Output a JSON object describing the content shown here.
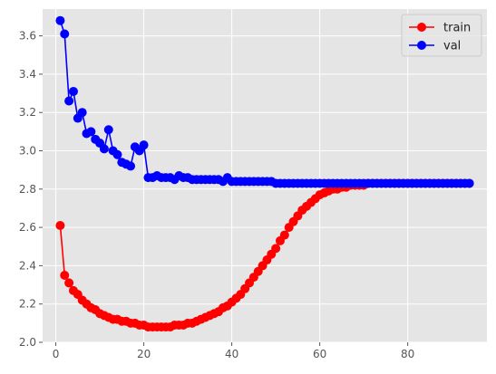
{
  "chart_data": {
    "type": "line",
    "x": [
      1,
      2,
      3,
      4,
      5,
      6,
      7,
      8,
      9,
      10,
      11,
      12,
      13,
      14,
      15,
      16,
      17,
      18,
      19,
      20,
      21,
      22,
      23,
      24,
      25,
      26,
      27,
      28,
      29,
      30,
      31,
      32,
      33,
      34,
      35,
      36,
      37,
      38,
      39,
      40,
      41,
      42,
      43,
      44,
      45,
      46,
      47,
      48,
      49,
      50,
      51,
      52,
      53,
      54,
      55,
      56,
      57,
      58,
      59,
      60,
      61,
      62,
      63,
      64,
      65,
      66,
      67,
      68,
      69,
      70,
      71,
      72,
      73,
      74,
      75,
      76,
      77,
      78,
      79,
      80,
      81,
      82,
      83,
      84,
      85,
      86,
      87,
      88,
      89,
      90,
      91,
      92,
      93,
      94
    ],
    "series": [
      {
        "name": "train",
        "color": "#ff0000",
        "values": [
          2.61,
          2.35,
          2.31,
          2.27,
          2.25,
          2.22,
          2.2,
          2.18,
          2.17,
          2.15,
          2.14,
          2.13,
          2.12,
          2.12,
          2.11,
          2.11,
          2.1,
          2.1,
          2.09,
          2.09,
          2.08,
          2.08,
          2.08,
          2.08,
          2.08,
          2.08,
          2.09,
          2.09,
          2.09,
          2.1,
          2.1,
          2.11,
          2.12,
          2.13,
          2.14,
          2.15,
          2.16,
          2.18,
          2.19,
          2.21,
          2.23,
          2.25,
          2.28,
          2.31,
          2.34,
          2.37,
          2.4,
          2.43,
          2.46,
          2.49,
          2.53,
          2.56,
          2.6,
          2.63,
          2.66,
          2.69,
          2.71,
          2.73,
          2.75,
          2.77,
          2.78,
          2.79,
          2.8,
          2.8,
          2.81,
          2.81,
          2.82,
          2.82,
          2.82,
          2.82,
          2.83,
          2.83,
          2.83,
          2.83,
          2.83,
          2.83,
          2.83,
          2.83,
          2.83,
          2.83,
          2.83,
          2.83,
          2.83,
          2.83,
          2.83,
          2.83,
          2.83,
          2.83,
          2.83,
          2.83,
          2.83,
          2.83,
          2.83,
          2.83
        ]
      },
      {
        "name": "val",
        "color": "#0000ff",
        "values": [
          3.68,
          3.61,
          3.26,
          3.31,
          3.17,
          3.2,
          3.09,
          3.1,
          3.06,
          3.04,
          3.01,
          3.11,
          3.0,
          2.98,
          2.94,
          2.93,
          2.92,
          3.02,
          3.0,
          3.03,
          2.86,
          2.86,
          2.87,
          2.86,
          2.86,
          2.86,
          2.85,
          2.87,
          2.86,
          2.86,
          2.85,
          2.85,
          2.85,
          2.85,
          2.85,
          2.85,
          2.85,
          2.84,
          2.86,
          2.84,
          2.84,
          2.84,
          2.84,
          2.84,
          2.84,
          2.84,
          2.84,
          2.84,
          2.84,
          2.83,
          2.83,
          2.83,
          2.83,
          2.83,
          2.83,
          2.83,
          2.83,
          2.83,
          2.83,
          2.83,
          2.83,
          2.83,
          2.83,
          2.83,
          2.83,
          2.83,
          2.83,
          2.83,
          2.83,
          2.83,
          2.83,
          2.83,
          2.83,
          2.83,
          2.83,
          2.83,
          2.83,
          2.83,
          2.83,
          2.83,
          2.83,
          2.83,
          2.83,
          2.83,
          2.83,
          2.83,
          2.83,
          2.83,
          2.83,
          2.83,
          2.83,
          2.83,
          2.83,
          2.83
        ]
      }
    ],
    "xticks": [
      "0",
      "20",
      "40",
      "60",
      "80"
    ],
    "yticks": [
      "2.0",
      "2.2",
      "2.4",
      "2.6",
      "2.8",
      "3.0",
      "3.2",
      "3.4",
      "3.6"
    ],
    "xlim": [
      -3,
      98
    ],
    "ylim": [
      2.0,
      3.74
    ],
    "title": "",
    "xlabel": "",
    "ylabel": "",
    "grid": true,
    "legend_position": "top-right",
    "background_color": "#e5e5e5",
    "grid_color": "#ffffff"
  }
}
